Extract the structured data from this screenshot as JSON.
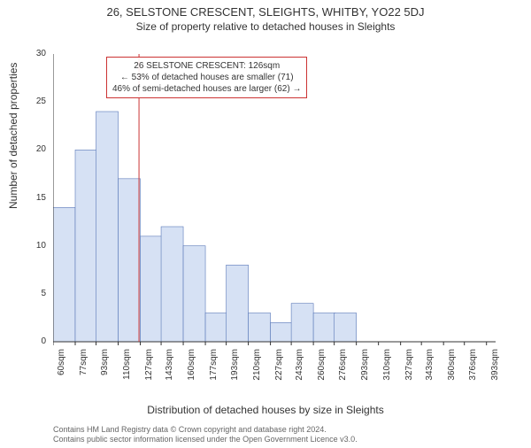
{
  "titles": {
    "main": "26, SELSTONE CRESCENT, SLEIGHTS, WHITBY, YO22 5DJ",
    "sub": "Size of property relative to detached houses in Sleights"
  },
  "axes": {
    "ylabel": "Number of detached properties",
    "xlabel": "Distribution of detached houses by size in Sleights",
    "ylim": [
      0,
      30
    ],
    "yticks": [
      0,
      5,
      10,
      15,
      20,
      25,
      30
    ],
    "xlim": [
      60,
      400
    ],
    "xticks": [
      60,
      77,
      93,
      110,
      127,
      143,
      160,
      177,
      193,
      210,
      227,
      243,
      260,
      276,
      293,
      310,
      327,
      343,
      360,
      376,
      393
    ],
    "xtick_suffix": "sqm"
  },
  "histogram": {
    "type": "histogram",
    "bin_width": 17,
    "bins": [
      {
        "start": 60,
        "count": 14
      },
      {
        "start": 77,
        "count": 20
      },
      {
        "start": 93,
        "count": 24
      },
      {
        "start": 110,
        "count": 17
      },
      {
        "start": 127,
        "count": 11
      },
      {
        "start": 143,
        "count": 12
      },
      {
        "start": 160,
        "count": 10
      },
      {
        "start": 177,
        "count": 3
      },
      {
        "start": 193,
        "count": 8
      },
      {
        "start": 210,
        "count": 3
      },
      {
        "start": 227,
        "count": 2
      },
      {
        "start": 243,
        "count": 4
      },
      {
        "start": 260,
        "count": 3
      },
      {
        "start": 276,
        "count": 3
      },
      {
        "start": 293,
        "count": 0
      },
      {
        "start": 310,
        "count": 0
      },
      {
        "start": 327,
        "count": 0
      },
      {
        "start": 343,
        "count": 0
      },
      {
        "start": 360,
        "count": 0
      },
      {
        "start": 376,
        "count": 0
      }
    ],
    "bar_fill": "#d6e1f4",
    "bar_stroke": "#5a78b8",
    "background": "#ffffff",
    "axis_color": "#333333",
    "grid_color": "#e8e8e8",
    "grid_on": false
  },
  "marker": {
    "value": 126,
    "line_color": "#cc3333",
    "line_width": 1
  },
  "annotation": {
    "lines": [
      "26 SELSTONE CRESCENT: 126sqm",
      "← 53% of detached houses are smaller (71)",
      "46% of semi-detached houses are larger (62) →"
    ],
    "border_color": "#cc3333",
    "text_color": "#333333",
    "fontsize": 10
  },
  "footnote": {
    "line1": "Contains HM Land Registry data © Crown copyright and database right 2024.",
    "line2": "Contains public sector information licensed under the Open Government Licence v3.0.",
    "color": "#666666",
    "fontsize": 9
  }
}
